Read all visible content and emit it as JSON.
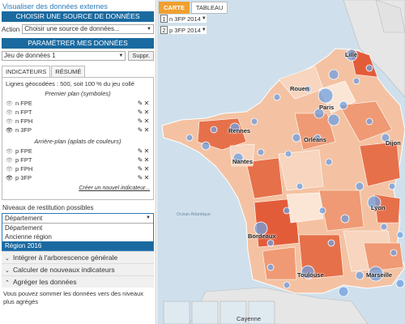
{
  "panel": {
    "title": "Visualiser des données externes",
    "source_bar": "CHOISIR UNE SOURCE DE DONNÉES",
    "action_label": "Action",
    "action_value": "Choisir une source de données...",
    "params_bar": "PARAMÉTRER MES DONNÉES",
    "dataset_value": "Jeu de données 1",
    "delete_button": "Suppr.",
    "tabs": [
      "INDICATEURS",
      "RÉSUMÉ"
    ],
    "geo_text": "Lignes géocodées : 500, soit 100 % du jeu collé",
    "foreground_title": "Premier plan (symboles)",
    "foreground_items": [
      {
        "name": "n FPE",
        "visible": false
      },
      {
        "name": "n FPT",
        "visible": false
      },
      {
        "name": "n FPH",
        "visible": false
      },
      {
        "name": "n 3FP",
        "visible": true
      }
    ],
    "background_title": "Arrière-plan (aplats de couleurs)",
    "background_items": [
      {
        "name": "p FPE",
        "visible": false
      },
      {
        "name": "p FPT",
        "visible": false
      },
      {
        "name": "p FPH",
        "visible": false
      },
      {
        "name": "p 3FP",
        "visible": true
      }
    ],
    "new_indicator_link": "Créer un nouvel indicateur...",
    "levels_label": "Niveaux de restitution possibles",
    "levels_selected": "Département",
    "levels_options": [
      "Département",
      "Ancienne région",
      "Région 2016"
    ],
    "levels_highlighted": "Région 2016",
    "accordion": [
      {
        "label": "Intégrer à l'arborescence générale",
        "state": "collapsed"
      },
      {
        "label": "Calculer de nouveaux indicateurs",
        "state": "collapsed"
      },
      {
        "label": "Agréger les données",
        "state": "expanded"
      }
    ],
    "aggregate_note": "Vous pouvez sommer les données vers des niveaux plus agrégés"
  },
  "map": {
    "tabs": [
      "CARTE",
      "TABLEAU"
    ],
    "active_tab": "CARTE",
    "layers": [
      {
        "num": "1",
        "label": "n 3FP",
        "year": "2014"
      },
      {
        "num": "2",
        "label": "p 3FP",
        "year": "2014"
      }
    ],
    "cities": [
      "Lille",
      "Rouen",
      "Paris",
      "Rennes",
      "Orléans",
      "Nantes",
      "Dijon",
      "Lyon",
      "Bordeaux",
      "Toulouse",
      "Marseille",
      "Cayenne"
    ],
    "ocean_label": "Océan Atlantique",
    "colors": {
      "accent": "#1a6aa0",
      "map_tab": "#f0a030",
      "sea": "#cfe0ec",
      "bubble": "#6f9fe0"
    }
  }
}
